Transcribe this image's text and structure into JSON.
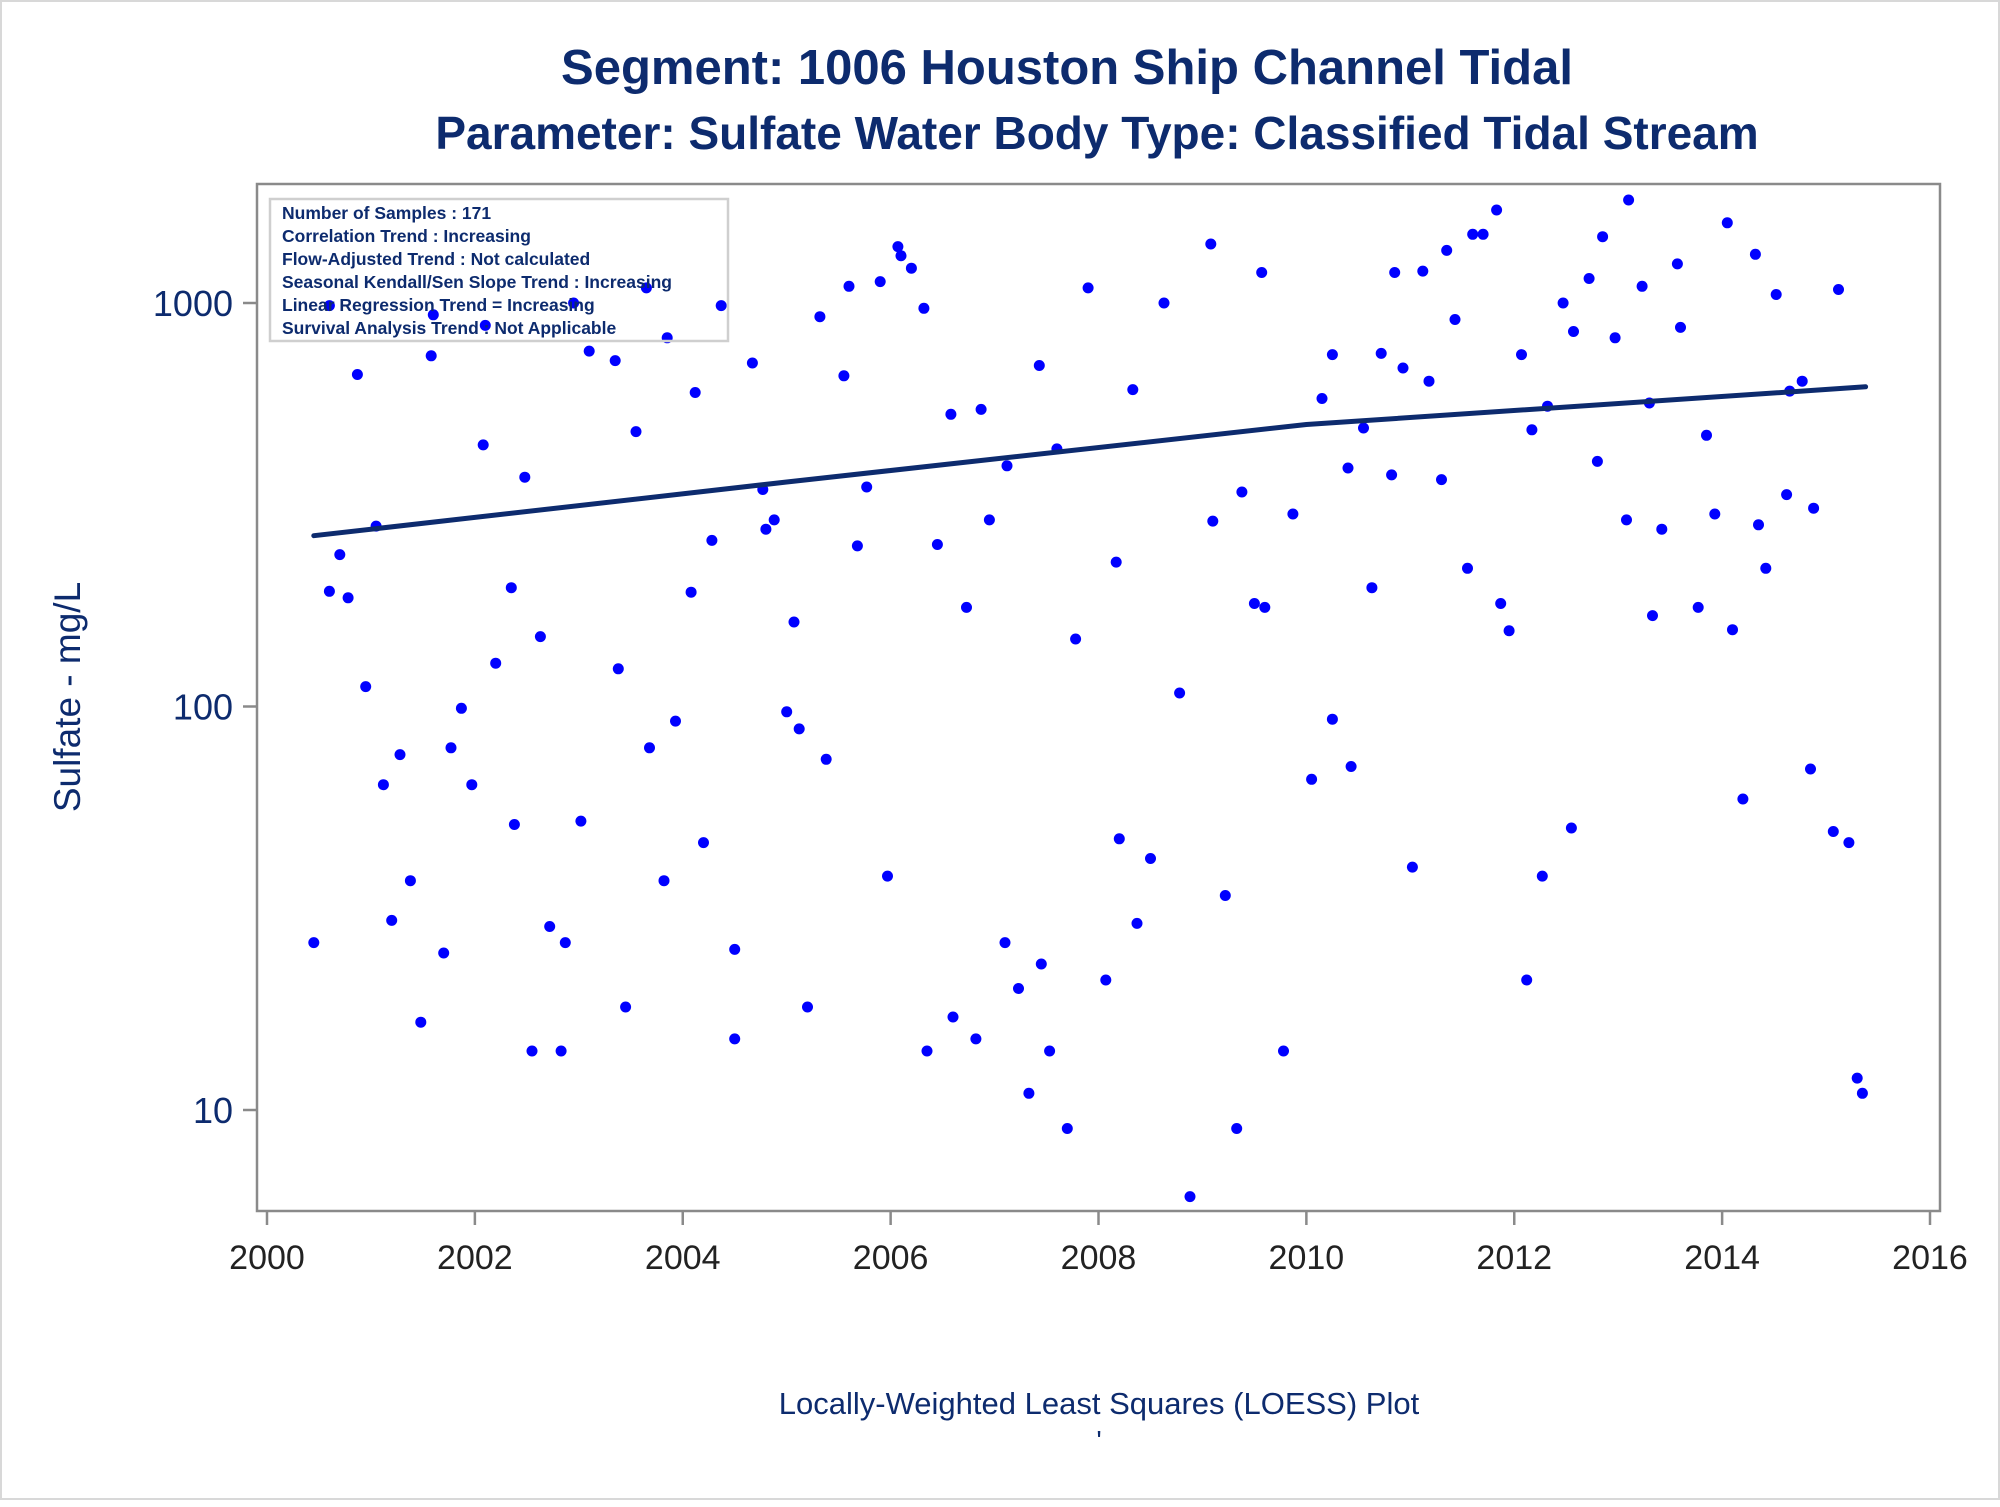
{
  "chart_data": {
    "type": "scatter",
    "title": "Segment: 1006  Houston Ship Channel Tidal",
    "subtitle": "Parameter: Sulfate   Water Body Type: Classified Tidal Stream",
    "ylabel": "Sulfate - mg/L",
    "footnote": "Locally-Weighted Least Squares (LOESS) Plot",
    "footmark": "'",
    "y_scale": "log",
    "xlim": [
      2000,
      2016
    ],
    "ylim": [
      6,
      1800
    ],
    "x_ticks": [
      2000,
      2002,
      2004,
      2006,
      2008,
      2010,
      2012,
      2014,
      2016
    ],
    "y_ticks": [
      10,
      100,
      1000
    ],
    "grid": false,
    "stats_box": {
      "placement": "top-left",
      "lines": [
        "Number of Samples : 171",
        "Correlation Trend : Increasing",
        "Flow-Adjusted Trend : Not calculated",
        "Seasonal Kendall/Sen Slope Trend : Increasing",
        "Linear Regression Trend = Increasing",
        "Survival Analysis Trend : Not Applicable"
      ]
    },
    "colors": {
      "text": "#0d2b6e",
      "points": "#0000ff",
      "line": "#0d2b6e",
      "axes": "#8a8a8a",
      "ticklabels": "#222222"
    },
    "loess_line": {
      "x": [
        2000.45,
        2005.0,
        2010.0,
        2015.38
      ],
      "y": [
        265,
        360,
        500,
        620
      ]
    },
    "points": [
      [
        2000.45,
        26
      ],
      [
        2000.6,
        193
      ],
      [
        2000.6,
        985
      ],
      [
        2000.7,
        238
      ],
      [
        2000.78,
        186
      ],
      [
        2000.87,
        665
      ],
      [
        2000.95,
        112
      ],
      [
        2001.05,
        280
      ],
      [
        2001.12,
        64
      ],
      [
        2001.2,
        29.5
      ],
      [
        2001.28,
        76
      ],
      [
        2001.38,
        37
      ],
      [
        2001.48,
        16.5
      ],
      [
        2001.58,
        740
      ],
      [
        2001.6,
        935
      ],
      [
        2001.7,
        24.5
      ],
      [
        2001.77,
        79
      ],
      [
        2001.87,
        99
      ],
      [
        2001.97,
        64
      ],
      [
        2002.08,
        445
      ],
      [
        2002.1,
        880
      ],
      [
        2002.2,
        128
      ],
      [
        2002.35,
        197
      ],
      [
        2002.38,
        51
      ],
      [
        2002.48,
        370
      ],
      [
        2002.55,
        14
      ],
      [
        2002.63,
        149
      ],
      [
        2002.72,
        28.5
      ],
      [
        2002.83,
        14
      ],
      [
        2002.87,
        26
      ],
      [
        2002.95,
        1000
      ],
      [
        2003.02,
        52
      ],
      [
        2003.1,
        760
      ],
      [
        2003.35,
        720
      ],
      [
        2003.38,
        124
      ],
      [
        2003.45,
        18
      ],
      [
        2003.55,
        480
      ],
      [
        2003.65,
        1090
      ],
      [
        2003.68,
        79
      ],
      [
        2003.82,
        37
      ],
      [
        2003.85,
        820
      ],
      [
        2003.93,
        92
      ],
      [
        2004.08,
        192
      ],
      [
        2004.12,
        600
      ],
      [
        2004.2,
        46
      ],
      [
        2004.28,
        258
      ],
      [
        2004.37,
        985
      ],
      [
        2004.5,
        15
      ],
      [
        2004.5,
        25
      ],
      [
        2004.67,
        710
      ],
      [
        2004.77,
        345
      ],
      [
        2004.8,
        275
      ],
      [
        2004.88,
        290
      ],
      [
        2005.0,
        97
      ],
      [
        2005.07,
        162
      ],
      [
        2005.12,
        88
      ],
      [
        2005.2,
        18
      ],
      [
        2005.32,
        925
      ],
      [
        2005.38,
        74
      ],
      [
        2005.55,
        660
      ],
      [
        2005.6,
        1100
      ],
      [
        2005.68,
        250
      ],
      [
        2005.77,
        350
      ],
      [
        2005.9,
        1130
      ],
      [
        2005.97,
        38
      ],
      [
        2006.07,
        1380
      ],
      [
        2006.1,
        1310
      ],
      [
        2006.2,
        1220
      ],
      [
        2006.32,
        970
      ],
      [
        2006.35,
        14
      ],
      [
        2006.45,
        252
      ],
      [
        2006.58,
        530
      ],
      [
        2006.6,
        17
      ],
      [
        2006.73,
        176
      ],
      [
        2006.82,
        15
      ],
      [
        2006.87,
        545
      ],
      [
        2006.95,
        290
      ],
      [
        2007.1,
        26
      ],
      [
        2007.12,
        395
      ],
      [
        2007.23,
        20
      ],
      [
        2007.33,
        11
      ],
      [
        2007.43,
        700
      ],
      [
        2007.45,
        23
      ],
      [
        2007.53,
        14
      ],
      [
        2007.6,
        435
      ],
      [
        2007.7,
        9
      ],
      [
        2007.78,
        147
      ],
      [
        2007.9,
        1090
      ],
      [
        2008.07,
        21
      ],
      [
        2008.17,
        228
      ],
      [
        2008.2,
        47
      ],
      [
        2008.33,
        610
      ],
      [
        2008.37,
        29
      ],
      [
        2008.5,
        42
      ],
      [
        2008.63,
        1000
      ],
      [
        2008.78,
        108
      ],
      [
        2008.88,
        6.1
      ],
      [
        2009.08,
        1400
      ],
      [
        2009.1,
        288
      ],
      [
        2009.22,
        34
      ],
      [
        2009.33,
        9
      ],
      [
        2009.38,
        340
      ],
      [
        2009.5,
        180
      ],
      [
        2009.57,
        1190
      ],
      [
        2009.6,
        176
      ],
      [
        2009.78,
        14
      ],
      [
        2009.87,
        300
      ],
      [
        2010.05,
        66
      ],
      [
        2010.15,
        580
      ],
      [
        2010.25,
        745
      ],
      [
        2010.25,
        93
      ],
      [
        2010.4,
        390
      ],
      [
        2010.43,
        71
      ],
      [
        2010.55,
        490
      ],
      [
        2010.63,
        197
      ],
      [
        2010.72,
        750
      ],
      [
        2010.82,
        375
      ],
      [
        2010.85,
        1190
      ],
      [
        2010.93,
        690
      ],
      [
        2011.02,
        40
      ],
      [
        2011.12,
        1200
      ],
      [
        2011.18,
        640
      ],
      [
        2011.3,
        365
      ],
      [
        2011.35,
        1350
      ],
      [
        2011.43,
        910
      ],
      [
        2011.55,
        220
      ],
      [
        2011.6,
        1480
      ],
      [
        2011.7,
        1480
      ],
      [
        2011.83,
        1700
      ],
      [
        2011.87,
        180
      ],
      [
        2011.95,
        154
      ],
      [
        2012.07,
        745
      ],
      [
        2012.12,
        21
      ],
      [
        2012.17,
        485
      ],
      [
        2012.27,
        38
      ],
      [
        2012.32,
        555
      ],
      [
        2012.47,
        1000
      ],
      [
        2012.55,
        50
      ],
      [
        2012.57,
        850
      ],
      [
        2012.72,
        1150
      ],
      [
        2012.8,
        405
      ],
      [
        2012.85,
        1460
      ],
      [
        2012.97,
        820
      ],
      [
        2013.08,
        290
      ],
      [
        2013.1,
        1800
      ],
      [
        2013.23,
        1100
      ],
      [
        2013.3,
        565
      ],
      [
        2013.33,
        168
      ],
      [
        2013.42,
        275
      ],
      [
        2013.57,
        1250
      ],
      [
        2013.6,
        870
      ],
      [
        2013.77,
        176
      ],
      [
        2013.85,
        470
      ],
      [
        2013.93,
        300
      ],
      [
        2014.05,
        1580
      ],
      [
        2014.1,
        155
      ],
      [
        2014.2,
        59
      ],
      [
        2014.32,
        1320
      ],
      [
        2014.35,
        282
      ],
      [
        2014.42,
        220
      ],
      [
        2014.52,
        1050
      ],
      [
        2014.62,
        335
      ],
      [
        2014.65,
        605
      ],
      [
        2014.77,
        640
      ],
      [
        2014.85,
        70
      ],
      [
        2014.88,
        310
      ],
      [
        2015.07,
        49
      ],
      [
        2015.12,
        1080
      ],
      [
        2015.22,
        46
      ],
      [
        2015.3,
        12
      ],
      [
        2015.35,
        11
      ]
    ]
  }
}
